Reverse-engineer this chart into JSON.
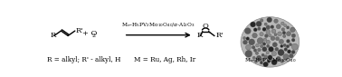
{
  "bg_color": "#ffffff",
  "figsize": [
    3.78,
    0.85
  ],
  "dpi": 100,
  "bottom_left": "R = alkyl; R' - alkyl, H",
  "bottom_right": "M = Ru, Ag, Rh, Ir",
  "arrow_label": "M$_n$–H$_5$PV$_2$Mo$_{10}$O$_{40}$/$\\alpha$-Al$_2$O$_3$",
  "caption": "M$_n$–H$_5$PV$_2$Mo$_{10}$O$_{40}$"
}
